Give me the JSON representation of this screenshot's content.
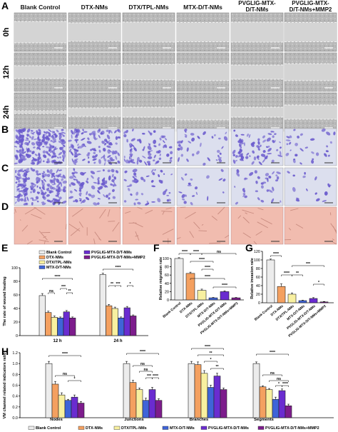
{
  "figure": {
    "panel_letters": [
      "A",
      "B",
      "C",
      "D",
      "E",
      "F",
      "G",
      "H"
    ],
    "column_headers": [
      {
        "lines": [
          "Blank Control"
        ]
      },
      {
        "lines": [
          "DTX-NMs"
        ]
      },
      {
        "lines": [
          "DTX/TPL-NMs"
        ]
      },
      {
        "lines": [
          "MTX-D/T-NMs"
        ]
      },
      {
        "lines": [
          "PVGLIG-MTX-",
          "D/T-NMs"
        ]
      },
      {
        "lines": [
          "PVGLIG-MTX-",
          "D/T-NMs+MMP2"
        ]
      }
    ],
    "row_labels": [
      "0h",
      "12h",
      "24h"
    ],
    "colors": {
      "blank": "#ececec",
      "dtx": "#f4a060",
      "dtx_tpl": "#f8f0a0",
      "mtx": "#3f64d8",
      "pvglig": "#6a2cd0",
      "pvglig_mmp2": "#7d1c8c",
      "scratch_bg": "#b9b9b9",
      "transwell_stain": "#6a5acd",
      "tube_bg": "#f1bcaf"
    }
  },
  "chart_data": [
    {
      "panel": "E",
      "type": "bar",
      "title": "",
      "ylabel": "The rate of wound healing",
      "ylim": [
        0,
        100
      ],
      "yticks": [
        0,
        20,
        40,
        60,
        80,
        100
      ],
      "categories": [
        "12 h",
        "24 h"
      ],
      "legend": [
        "Blank Control",
        "DTX-NMs",
        "DTX/TPL-NMs",
        "MTX-D/T-NMs",
        "PVGLIG-MTX-D/T-NMs",
        "PVGLIG-MTX-D/T-NMs+MMP2"
      ],
      "series": [
        {
          "name": "Blank Control",
          "values": [
            59,
            90
          ],
          "errors": [
            3,
            2
          ]
        },
        {
          "name": "DTX-NMs",
          "values": [
            34,
            44
          ],
          "errors": [
            2,
            2
          ]
        },
        {
          "name": "DTX/TPL-NMs",
          "values": [
            27,
            40
          ],
          "errors": [
            2,
            2
          ]
        },
        {
          "name": "MTX-D/T-NMs",
          "values": [
            26,
            26
          ],
          "errors": [
            1.5,
            1.5
          ]
        },
        {
          "name": "PVGLIG-MTX-D/T-NMs",
          "values": [
            35,
            41
          ],
          "errors": [
            2,
            2
          ]
        },
        {
          "name": "PVGLIG-MTX-D/T-NMs+MMP2",
          "values": [
            26,
            29
          ],
          "errors": [
            1.5,
            1.5
          ]
        }
      ],
      "annotations": [
        "****",
        "ns",
        "***",
        "**",
        "****",
        "**",
        "***",
        "*"
      ]
    },
    {
      "panel": "F",
      "type": "bar",
      "title": "",
      "ylabel": "Relative migration rate",
      "ylim": [
        0,
        100
      ],
      "yticks": [
        0,
        20,
        40,
        60,
        80,
        100
      ],
      "categories": [
        "Blank Control",
        "DTX-NMs",
        "DTX/TPL-NMs",
        "MTX-D/T-NMs",
        "PVGLIG-MTX-D/T-NMs",
        "PVGLIG-MTX-D/T-NMs+MMP2"
      ],
      "values": [
        100,
        64,
        23,
        5,
        20,
        5
      ],
      "errors": [
        2,
        3,
        3,
        1,
        2,
        1
      ],
      "annotations": [
        "****",
        "****",
        "ns",
        "****",
        "****",
        "****",
        "****"
      ]
    },
    {
      "panel": "G",
      "type": "bar",
      "title": "",
      "ylabel": "Relative invasion rate",
      "ylim": [
        0,
        120
      ],
      "yticks": [
        0,
        20,
        40,
        60,
        80,
        100,
        120
      ],
      "categories": [
        "Blank Control",
        "DTX-NMs",
        "DTX/TPL-NMs",
        "MTX-D/T-NMs",
        "PVGLIG-MTX-D/T-NMs",
        "PVGLIG-MTX-D/T-NMs+MMP2"
      ],
      "values": [
        100,
        38,
        20,
        5,
        10,
        2
      ],
      "errors": [
        2,
        6,
        3,
        1,
        2,
        1
      ],
      "annotations": [
        "****",
        "****",
        "**",
        "***",
        "*"
      ]
    },
    {
      "panel": "H",
      "type": "bar",
      "title": "",
      "ylabel": "VM channel related indicators ratio",
      "ylim": [
        0,
        1.2
      ],
      "yticks": [
        0,
        0.2,
        0.4,
        0.6,
        0.8,
        1.0,
        1.2
      ],
      "categories": [
        "Nodes",
        "Junctions",
        "Branches",
        "Segments"
      ],
      "legend": [
        "Blank Control",
        "DTX-NMs",
        "DTX/TPL-NMs",
        "MTX-D/T-NMs",
        "PVGLIG-MTX-D/T-NMs",
        "PVGLIG-MTX-D/T-NMs+MMP2"
      ],
      "series": [
        {
          "name": "Blank Control",
          "values": [
            1.0,
            1.0,
            1.0,
            1.0
          ],
          "errors": [
            0.04,
            0.04,
            0.04,
            0.03
          ]
        },
        {
          "name": "DTX-NMs",
          "values": [
            0.62,
            0.65,
            0.98,
            0.57
          ],
          "errors": [
            0.05,
            0.04,
            0.05,
            0.02
          ]
        },
        {
          "name": "DTX/TPL-NMs",
          "values": [
            0.42,
            0.52,
            0.82,
            0.52
          ],
          "errors": [
            0.04,
            0.03,
            0.05,
            0.02
          ]
        },
        {
          "name": "MTX-D/T-NMs",
          "values": [
            0.32,
            0.32,
            0.56,
            0.34
          ],
          "errors": [
            0.02,
            0.04,
            0.04,
            0.04
          ]
        },
        {
          "name": "PVGLIG-MTX-D/T-NMs",
          "values": [
            0.38,
            0.52,
            0.77,
            0.5
          ],
          "errors": [
            0.04,
            0.04,
            0.05,
            0.03
          ]
        },
        {
          "name": "PVGLIG-MTX-D/T-NMs+MMP2",
          "values": [
            0.27,
            0.32,
            0.52,
            0.22
          ],
          "errors": [
            0.03,
            0.03,
            0.03,
            0.03
          ]
        }
      ],
      "annotations": [
        "****",
        "ns",
        "*",
        "****",
        "ns",
        "ns",
        "***",
        "****",
        "****",
        "**",
        "*",
        "**",
        "****",
        "ns",
        "ns",
        "*",
        "****"
      ]
    }
  ]
}
